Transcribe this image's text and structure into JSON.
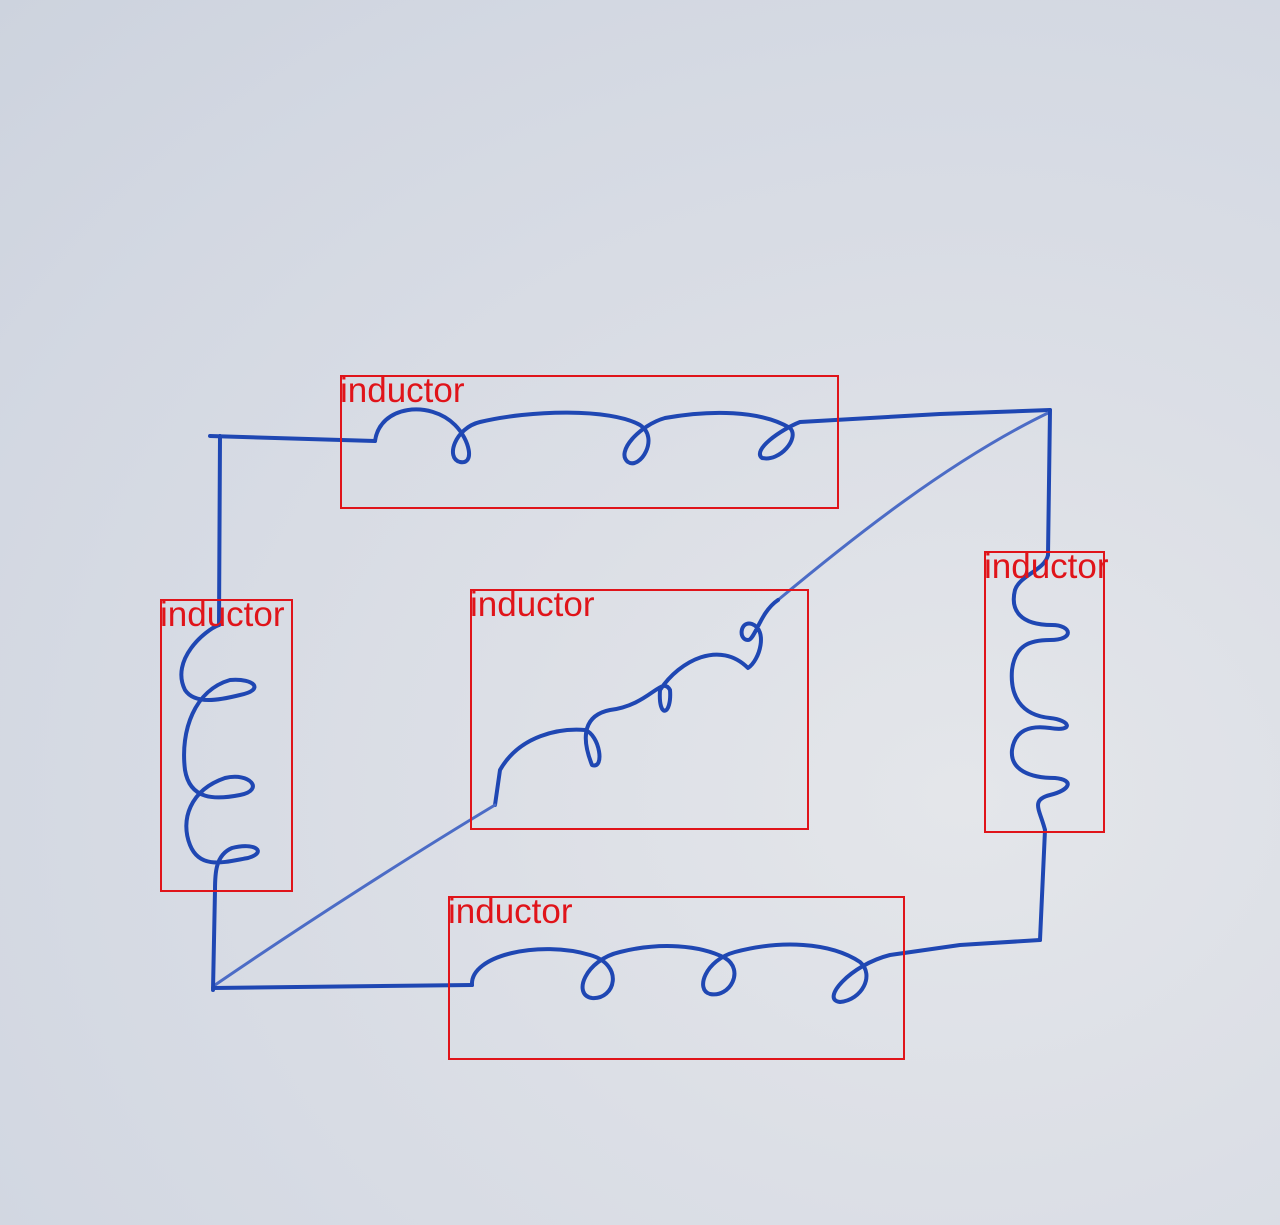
{
  "diagram": {
    "stroke_color": "#1f47b3",
    "box_color": "#e0141a",
    "detections": [
      {
        "id": "top",
        "label": "inductor"
      },
      {
        "id": "left",
        "label": "inductor"
      },
      {
        "id": "center",
        "label": "inductor"
      },
      {
        "id": "right",
        "label": "inductor"
      },
      {
        "id": "bottom",
        "label": "inductor"
      }
    ]
  }
}
